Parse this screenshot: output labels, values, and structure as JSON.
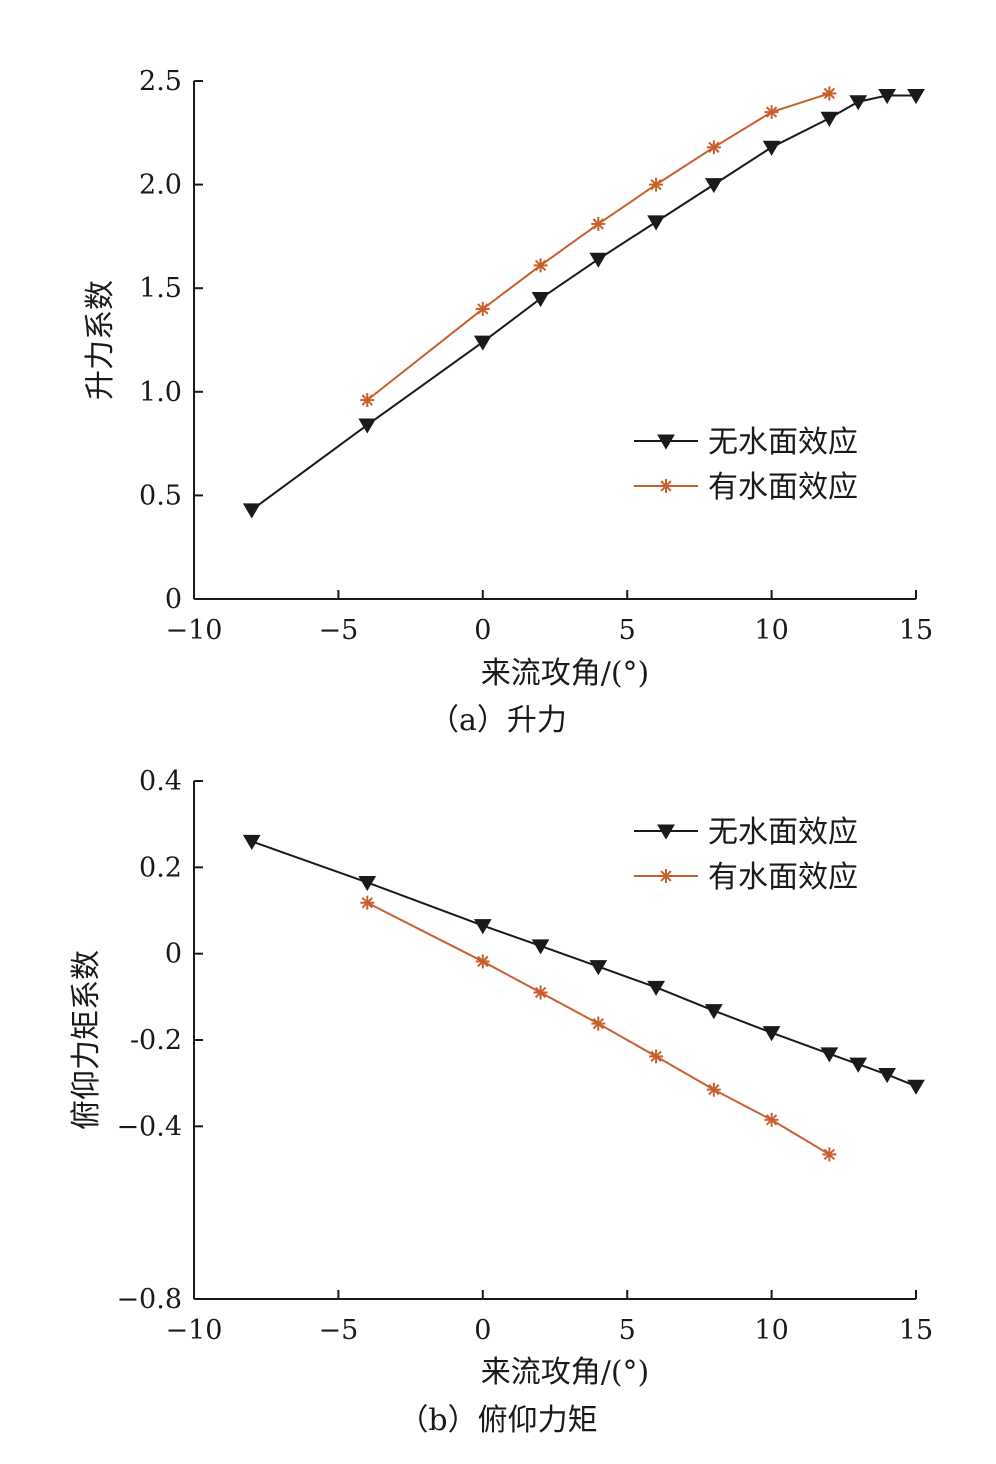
{
  "chart_data": [
    {
      "type": "line",
      "caption": "（a）升力",
      "xlabel": "来流攻角/(°)",
      "ylabel": "升力系数",
      "xlim": [
        -10,
        15
      ],
      "ylim": [
        0,
        2.5
      ],
      "xticks": [
        -10,
        -5,
        0,
        5,
        10,
        15
      ],
      "xtick_labels": [
        "−10",
        "−5",
        "0",
        "5",
        "10",
        "15"
      ],
      "yticks": [
        0,
        0.5,
        1.0,
        1.5,
        2.0,
        2.5
      ],
      "ytick_labels": [
        "0",
        "0.5",
        "1.0",
        "1.5",
        "2.0",
        "2.5"
      ],
      "grid": false,
      "legend_position": "right-center",
      "series": [
        {
          "name": "无水面效应",
          "color": "#1a1a1a",
          "marker": "triangle-down",
          "x": [
            -8,
            -4,
            0,
            2,
            4,
            6,
            8,
            10,
            12,
            13,
            14,
            15
          ],
          "y": [
            0.43,
            0.84,
            1.24,
            1.45,
            1.64,
            1.82,
            2.0,
            2.18,
            2.32,
            2.4,
            2.43,
            2.43
          ]
        },
        {
          "name": "有水面效应",
          "color": "#c8602e",
          "marker": "asterisk",
          "x": [
            -4,
            0,
            2,
            4,
            6,
            8,
            10,
            12
          ],
          "y": [
            0.96,
            1.4,
            1.61,
            1.81,
            2.0,
            2.18,
            2.35,
            2.44
          ]
        }
      ]
    },
    {
      "type": "line",
      "caption": "（b）俯仰力矩",
      "xlabel": "来流攻角/(°)",
      "ylabel": "俯仰力矩系数",
      "xlim": [
        -10,
        15
      ],
      "ylim": [
        -0.8,
        0.4
      ],
      "xticks": [
        -10,
        -5,
        0,
        5,
        10,
        15
      ],
      "xtick_labels": [
        "−10",
        "−5",
        "0",
        "5",
        "10",
        "15"
      ],
      "yticks": [
        -0.8,
        -0.4,
        -0.2,
        0,
        0.2,
        0.4
      ],
      "ytick_labels": [
        "−0.8",
        "−0.4",
        "-0.2",
        "0",
        "0.2",
        "0.4"
      ],
      "grid": false,
      "legend_position": "top-right",
      "series": [
        {
          "name": "无水面效应",
          "color": "#1a1a1a",
          "marker": "triangle-down",
          "x": [
            -8,
            -4,
            0,
            2,
            4,
            6,
            8,
            10,
            12,
            13,
            14,
            15
          ],
          "y": [
            0.26,
            0.165,
            0.065,
            0.018,
            -0.03,
            -0.078,
            -0.132,
            -0.183,
            -0.232,
            -0.256,
            -0.28,
            -0.307
          ]
        },
        {
          "name": "有水面效应",
          "color": "#c8602e",
          "marker": "asterisk",
          "x": [
            -4,
            0,
            2,
            4,
            6,
            8,
            10,
            12
          ],
          "y": [
            0.118,
            -0.018,
            -0.09,
            -0.162,
            -0.238,
            -0.315,
            -0.385,
            -0.465
          ]
        }
      ]
    }
  ]
}
